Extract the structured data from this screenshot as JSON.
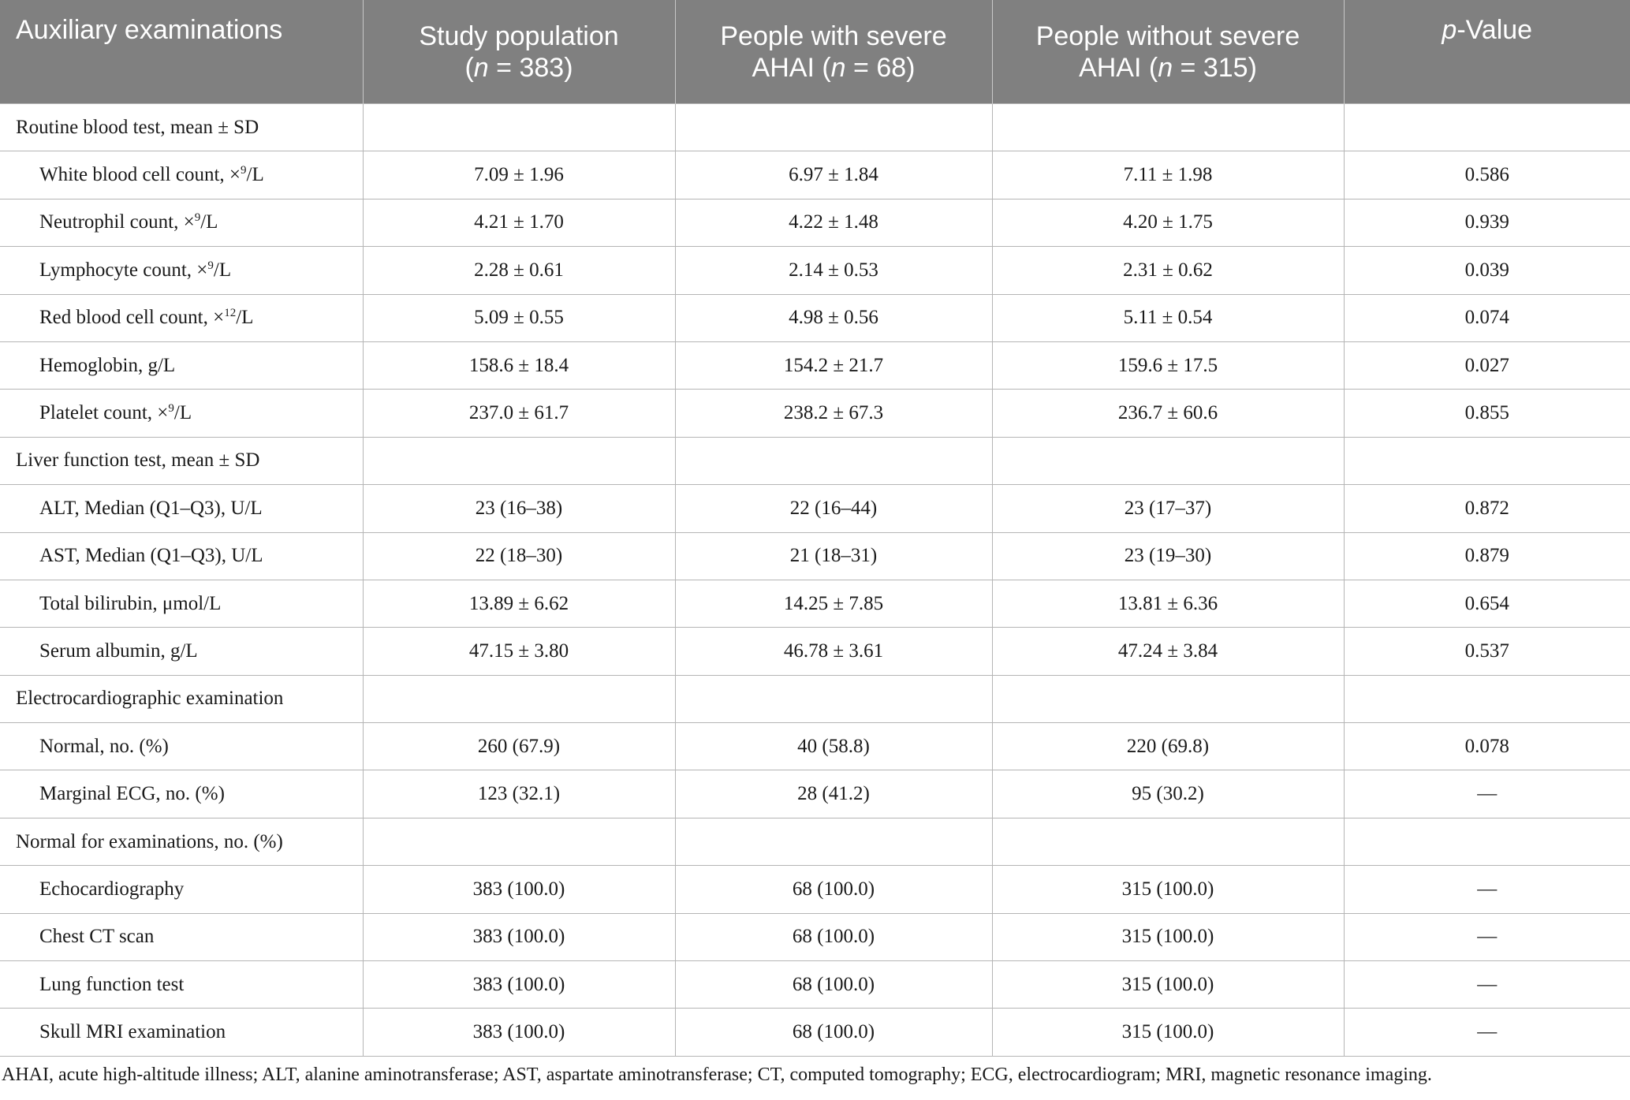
{
  "header": {
    "col0": "Auxiliary examinations",
    "col1_line1": "Study population",
    "col1_n_open": "(",
    "col1_n_italic": "n",
    "col1_n_rest": " = 383)",
    "col2_line1": "People with severe",
    "col2_line2_pre": "AHAI (",
    "col2_n_italic": "n",
    "col2_line2_rest": " = 68)",
    "col3_line1": "People without severe",
    "col3_line2_pre": "AHAI (",
    "col3_n_italic": "n",
    "col3_line2_rest": " = 315)",
    "col4_italic": "p",
    "col4_rest": "-Value"
  },
  "rows": [
    {
      "kind": "section",
      "label": "Routine blood test, mean ± SD",
      "v1": "",
      "v2": "",
      "v3": "",
      "p": ""
    },
    {
      "kind": "item",
      "label": "White blood cell count, ×",
      "sup": "9",
      "suffix": "/L",
      "v1": "7.09 ± 1.96",
      "v2": "6.97 ± 1.84",
      "v3": "7.11 ± 1.98",
      "p": "0.586"
    },
    {
      "kind": "item",
      "label": "Neutrophil count, ×",
      "sup": "9",
      "suffix": "/L",
      "v1": "4.21 ± 1.70",
      "v2": "4.22 ± 1.48",
      "v3": "4.20 ± 1.75",
      "p": "0.939"
    },
    {
      "kind": "item",
      "label": "Lymphocyte count, ×",
      "sup": "9",
      "suffix": "/L",
      "v1": "2.28 ± 0.61",
      "v2": "2.14 ± 0.53",
      "v3": "2.31 ± 0.62",
      "p": "0.039"
    },
    {
      "kind": "item",
      "label": "Red blood cell count, ×",
      "sup": "12",
      "suffix": "/L",
      "v1": "5.09 ± 0.55",
      "v2": "4.98 ± 0.56",
      "v3": "5.11 ± 0.54",
      "p": "0.074"
    },
    {
      "kind": "item",
      "label": "Hemoglobin, g/L",
      "sup": "",
      "suffix": "",
      "v1": "158.6 ± 18.4",
      "v2": "154.2 ± 21.7",
      "v3": "159.6 ± 17.5",
      "p": "0.027"
    },
    {
      "kind": "item",
      "label": "Platelet count, ×",
      "sup": "9",
      "suffix": "/L",
      "v1": "237.0 ± 61.7",
      "v2": "238.2 ± 67.3",
      "v3": "236.7 ± 60.6",
      "p": "0.855"
    },
    {
      "kind": "section",
      "label": "Liver function test, mean ± SD",
      "v1": "",
      "v2": "",
      "v3": "",
      "p": ""
    },
    {
      "kind": "item",
      "label": "ALT, Median (Q1–Q3), U/L",
      "sup": "",
      "suffix": "",
      "v1": "23 (16–38)",
      "v2": "22 (16–44)",
      "v3": "23 (17–37)",
      "p": "0.872"
    },
    {
      "kind": "item",
      "label": "AST, Median (Q1–Q3), U/L",
      "sup": "",
      "suffix": "",
      "v1": "22 (18–30)",
      "v2": "21 (18–31)",
      "v3": "23 (19–30)",
      "p": "0.879"
    },
    {
      "kind": "item",
      "label": "Total bilirubin, μmol/L",
      "sup": "",
      "suffix": "",
      "v1": "13.89 ± 6.62",
      "v2": "14.25 ± 7.85",
      "v3": "13.81 ± 6.36",
      "p": "0.654"
    },
    {
      "kind": "item",
      "label": "Serum albumin, g/L",
      "sup": "",
      "suffix": "",
      "v1": "47.15 ± 3.80",
      "v2": "46.78 ± 3.61",
      "v3": "47.24 ± 3.84",
      "p": "0.537"
    },
    {
      "kind": "section",
      "label": "Electrocardiographic examination",
      "v1": "",
      "v2": "",
      "v3": "",
      "p": ""
    },
    {
      "kind": "item",
      "label": "Normal, no. (%)",
      "sup": "",
      "suffix": "",
      "v1": "260 (67.9)",
      "v2": "40 (58.8)",
      "v3": "220 (69.8)",
      "p": "0.078"
    },
    {
      "kind": "item",
      "label": "Marginal ECG, no. (%)",
      "sup": "",
      "suffix": "",
      "v1": "123 (32.1)",
      "v2": "28 (41.2)",
      "v3": "95 (30.2)",
      "p": "—"
    },
    {
      "kind": "section",
      "label": "Normal for examinations, no. (%)",
      "v1": "",
      "v2": "",
      "v3": "",
      "p": ""
    },
    {
      "kind": "item",
      "label": "Echocardiography",
      "sup": "",
      "suffix": "",
      "v1": "383 (100.0)",
      "v2": "68 (100.0)",
      "v3": "315 (100.0)",
      "p": "—"
    },
    {
      "kind": "item",
      "label": "Chest CT scan",
      "sup": "",
      "suffix": "",
      "v1": "383 (100.0)",
      "v2": "68 (100.0)",
      "v3": "315 (100.0)",
      "p": "—"
    },
    {
      "kind": "item",
      "label": "Lung function test",
      "sup": "",
      "suffix": "",
      "v1": "383 (100.0)",
      "v2": "68 (100.0)",
      "v3": "315 (100.0)",
      "p": "—"
    },
    {
      "kind": "item",
      "label": "Skull MRI examination",
      "sup": "",
      "suffix": "",
      "v1": "383 (100.0)",
      "v2": "68 (100.0)",
      "v3": "315 (100.0)",
      "p": "—"
    }
  ],
  "footnote": "AHAI, acute high-altitude illness; ALT, alanine aminotransferase; AST, aspartate aminotransferase; CT, computed tomography; ECG, electrocardiogram; MRI, magnetic resonance imaging.",
  "colors": {
    "header_bg": "#808080",
    "header_text": "#ffffff",
    "rule": "#b5b5b5"
  }
}
